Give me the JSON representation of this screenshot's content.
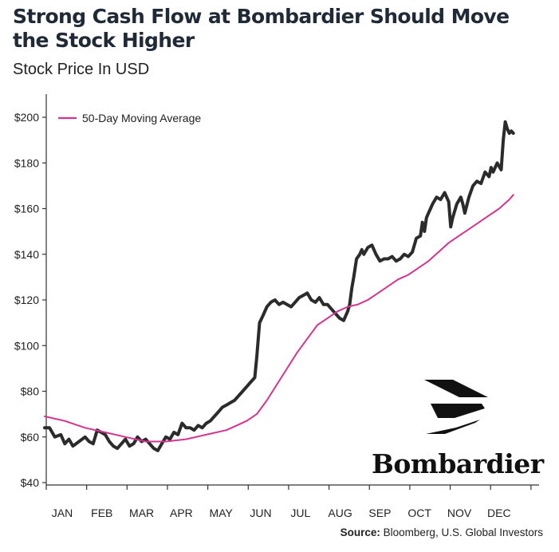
{
  "header": {
    "title": "Strong Cash Flow at Bombardier Should Move the Stock Higher",
    "subtitle": "Stock Price In USD"
  },
  "footer": {
    "source_label": "Source:",
    "source_text": " Bloomberg, U.S. Global Investors"
  },
  "logo": {
    "brand": "Bombardier",
    "icon": "bombardier-wing-icon"
  },
  "colors": {
    "price": "#2b2b2b",
    "moving_average": "#d6338e",
    "axis": "#333333"
  },
  "chart_data": {
    "type": "line",
    "title": "Strong Cash Flow at Bombardier Should Move the Stock Higher",
    "subtitle": "Stock Price In USD",
    "xlabel": "",
    "ylabel": "",
    "ylim": [
      40,
      200
    ],
    "xlim": [
      0,
      12
    ],
    "y_ticks": [
      40,
      60,
      80,
      100,
      120,
      140,
      160,
      180,
      200
    ],
    "y_tick_labels": [
      "$40",
      "$60",
      "$80",
      "$100",
      "$120",
      "$140",
      "$160",
      "$180",
      "$200"
    ],
    "x_ticks": [
      0.5,
      1.5,
      2.5,
      3.5,
      4.5,
      5.5,
      6.5,
      7.5,
      8.5,
      9.5,
      10.5,
      11.5
    ],
    "x_tick_labels": [
      "JAN",
      "FEB",
      "MAR",
      "APR",
      "MAY",
      "JUN",
      "JUL",
      "AUG",
      "SEP",
      "OCT",
      "NOV",
      "DEC"
    ],
    "grid": false,
    "legend": {
      "placement": "top-left",
      "entries": [
        "50-Day Moving Average"
      ]
    },
    "series": [
      {
        "role": "price",
        "x": [
          0,
          0.12,
          0.25,
          0.4,
          0.5,
          0.6,
          0.7,
          0.85,
          1,
          1.1,
          1.2,
          1.3,
          1.4,
          1.5,
          1.6,
          1.7,
          1.8,
          1.9,
          2,
          2.1,
          2.2,
          2.3,
          2.4,
          2.5,
          2.6,
          2.7,
          2.8,
          2.9,
          3,
          3.1,
          3.2,
          3.3,
          3.4,
          3.5,
          3.6,
          3.7,
          3.8,
          3.9,
          4,
          4.1,
          4.2,
          4.3,
          4.4,
          4.5,
          4.6,
          4.7,
          4.8,
          4.9,
          5,
          5.1,
          5.2,
          5.25,
          5.32,
          5.4,
          5.5,
          5.6,
          5.7,
          5.8,
          5.9,
          6,
          6.1,
          6.2,
          6.3,
          6.4,
          6.5,
          6.6,
          6.7,
          6.8,
          6.9,
          7,
          7.1,
          7.2,
          7.3,
          7.4,
          7.5,
          7.55,
          7.6,
          7.65,
          7.72,
          7.8,
          7.85,
          7.9,
          8,
          8.1,
          8.2,
          8.3,
          8.4,
          8.5,
          8.6,
          8.7,
          8.8,
          8.9,
          9,
          9.1,
          9.2,
          9.3,
          9.35,
          9.4,
          9.45,
          9.5,
          9.55,
          9.6,
          9.7,
          9.8,
          9.9,
          10,
          10.05,
          10.1,
          10.2,
          10.3,
          10.35,
          10.4,
          10.5,
          10.6,
          10.7,
          10.8,
          10.9,
          11,
          11.05,
          11.1,
          11.2,
          11.3,
          11.35,
          11.4,
          11.45,
          11.5,
          11.55,
          11.6
        ],
        "values": [
          64,
          64,
          60,
          61,
          57,
          59,
          56,
          58,
          60,
          58,
          57,
          63,
          62,
          61,
          58,
          56,
          55,
          57,
          59,
          56,
          57,
          60,
          58,
          59,
          57,
          55,
          54,
          57,
          60,
          59,
          62,
          61,
          66,
          64,
          64,
          63,
          65,
          64,
          66,
          67,
          69,
          71,
          73,
          74,
          75,
          76,
          78,
          80,
          82,
          84,
          86,
          95,
          110,
          113,
          117,
          119,
          120,
          118,
          119,
          118,
          117,
          119,
          121,
          122,
          123,
          120,
          119,
          121,
          118,
          118,
          116,
          114,
          112,
          111,
          115,
          118,
          125,
          130,
          138,
          140,
          142,
          140,
          143,
          144,
          140,
          137,
          138,
          138,
          139,
          137,
          138,
          140,
          139,
          141,
          147,
          148,
          154,
          150,
          156,
          158,
          160,
          162,
          165,
          164,
          167,
          163,
          152,
          156,
          162,
          165,
          162,
          158,
          165,
          170,
          172,
          171,
          176,
          174,
          178,
          176,
          180,
          177,
          190,
          198,
          195,
          193,
          194,
          193
        ]
      },
      {
        "name": "50-Day Moving Average",
        "role": "moving_average",
        "x": [
          0,
          0.5,
          1,
          1.5,
          2,
          2.5,
          3,
          3.5,
          4,
          4.5,
          5,
          5.25,
          5.5,
          5.75,
          6,
          6.25,
          6.5,
          6.75,
          7,
          7.25,
          7.5,
          7.75,
          8,
          8.25,
          8.5,
          8.75,
          9,
          9.25,
          9.5,
          9.75,
          10,
          10.25,
          10.5,
          10.75,
          11,
          11.25,
          11.5,
          11.6
        ],
        "values": [
          69,
          67,
          64,
          62,
          60,
          58,
          58,
          59,
          61,
          63,
          67,
          70,
          76,
          83,
          90,
          97,
          103,
          109,
          112,
          115,
          117,
          118,
          120,
          123,
          126,
          129,
          131,
          134,
          137,
          141,
          145,
          148,
          151,
          154,
          157,
          160,
          164,
          166
        ]
      }
    ]
  }
}
